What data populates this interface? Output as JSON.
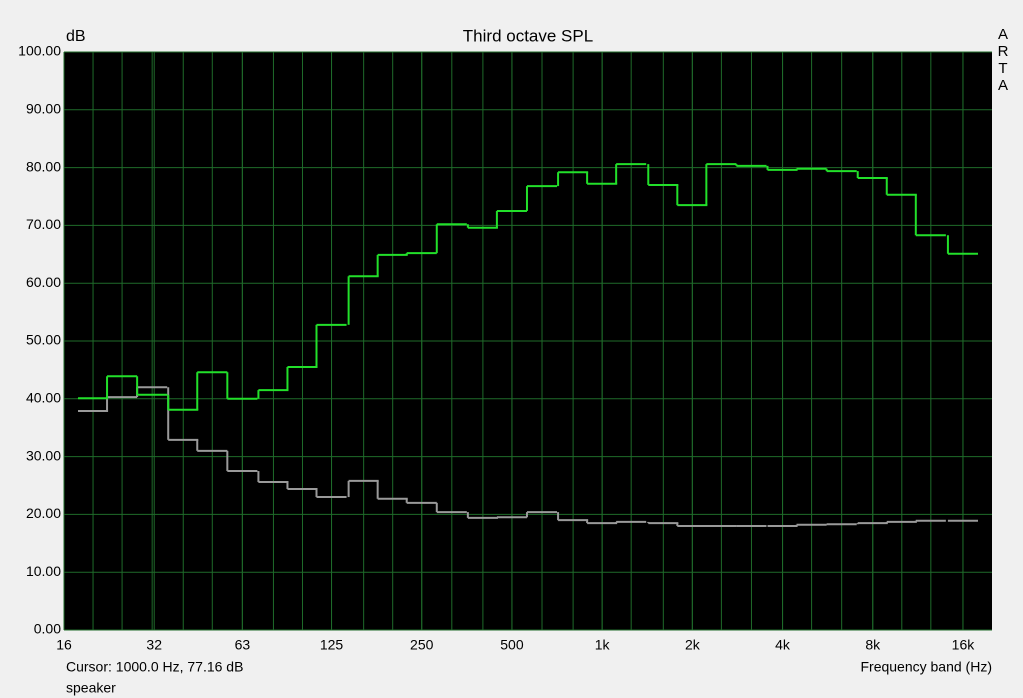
{
  "chart_data": {
    "type": "step",
    "title": "Third octave SPL",
    "y_label": "dB",
    "x_label": "Frequency band (Hz)",
    "brand": "ARTA",
    "cursor": "Cursor:  1000.0 Hz, 77.16 dB",
    "x_scale": "log",
    "grid": true,
    "x": [
      20,
      25,
      31.5,
      40,
      50,
      63,
      80,
      100,
      125,
      160,
      200,
      250,
      315,
      400,
      500,
      630,
      800,
      1000,
      1250,
      1600,
      2000,
      2500,
      3150,
      4000,
      5000,
      6300,
      8000,
      10000,
      12500,
      16000
    ],
    "series": [
      {
        "name": "speaker",
        "color": "#22e02a",
        "values": [
          40.1,
          43.9,
          40.7,
          38.1,
          44.6,
          40.0,
          41.5,
          45.5,
          52.8,
          61.2,
          64.9,
          65.2,
          70.2,
          69.6,
          72.5,
          76.8,
          79.2,
          77.2,
          80.6,
          77.0,
          73.5,
          80.6,
          80.3,
          79.6,
          79.8,
          79.4,
          78.2,
          75.3,
          68.3,
          65.1
        ]
      },
      {
        "color": "#9a9a9a",
        "values": [
          37.9,
          40.3,
          42.0,
          32.9,
          31.0,
          27.5,
          25.6,
          24.4,
          23.0,
          25.8,
          22.7,
          22.0,
          20.4,
          19.4,
          19.5,
          20.4,
          19.0,
          18.5,
          18.7,
          18.5,
          18.0,
          18.0,
          18.0,
          18.0,
          18.2,
          18.3,
          18.5,
          18.7,
          18.9,
          18.9
        ]
      }
    ],
    "xlim": [
      16,
      20000
    ],
    "xticks": [
      16,
      32,
      63,
      125,
      250,
      500,
      {
        "value": 1000,
        "label": "1k"
      },
      {
        "value": 2000,
        "label": "2k"
      },
      {
        "value": 4000,
        "label": "4k"
      },
      {
        "value": 8000,
        "label": "8k"
      },
      {
        "value": 16000,
        "label": "16k"
      }
    ],
    "ylim": [
      0,
      100
    ],
    "yticks": [
      {
        "value": 0,
        "label": "0.00"
      },
      {
        "value": 10,
        "label": "10.00"
      },
      {
        "value": 20,
        "label": "20.00"
      },
      {
        "value": 30,
        "label": "30.00"
      },
      {
        "value": 40,
        "label": "40.00"
      },
      {
        "value": 50,
        "label": "50.00"
      },
      {
        "value": 60,
        "label": "60.00"
      },
      {
        "value": 70,
        "label": "70.00"
      },
      {
        "value": 80,
        "label": "80.00"
      },
      {
        "value": 90,
        "label": "90.00"
      },
      {
        "value": 100,
        "label": "100.00"
      }
    ]
  }
}
